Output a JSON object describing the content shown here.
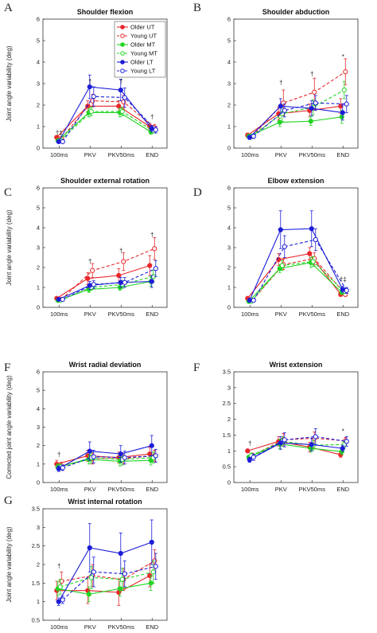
{
  "series_styles": [
    {
      "name": "Older UT",
      "color": "#e8262a",
      "dash": false,
      "filled": true
    },
    {
      "name": "Young UT",
      "color": "#e8262a",
      "dash": true,
      "filled": false
    },
    {
      "name": "Older MT",
      "color": "#22d422",
      "dash": false,
      "filled": true
    },
    {
      "name": "Young MT",
      "color": "#22d422",
      "dash": true,
      "filled": false
    },
    {
      "name": "Older LT",
      "color": "#1c1cd8",
      "dash": false,
      "filled": true
    },
    {
      "name": "Young LT",
      "color": "#1c1cd8",
      "dash": true,
      "filled": false
    }
  ],
  "chart_data": [
    {
      "type": "line",
      "letter": "A",
      "title": "Shoulder flexion",
      "ylabel": "Joint angle variability (deg)",
      "categories": [
        "100ms",
        "PKV",
        "PKV50ms",
        "END"
      ],
      "ylim": [
        0,
        6
      ],
      "yticks": [
        "0",
        "1",
        "2",
        "3",
        "4",
        "5",
        "6"
      ],
      "legend": "top-right",
      "annotations": [
        {
          "text": "†‡",
          "x": 0,
          "y": 0.62
        },
        {
          "text": "†",
          "x": 1,
          "y": 3.0
        },
        {
          "text": "†",
          "x": 2,
          "y": 3.0
        },
        {
          "text": "†",
          "x": 3,
          "y": 1.35
        }
      ],
      "series": [
        {
          "values": [
            0.5,
            1.95,
            1.95,
            1.0
          ],
          "err": [
            0.05,
            0.25,
            0.25,
            0.15
          ]
        },
        {
          "values": [
            0.45,
            2.2,
            2.15,
            0.95
          ],
          "err": [
            0.05,
            0.3,
            0.3,
            0.15
          ]
        },
        {
          "values": [
            0.35,
            1.65,
            1.65,
            0.75
          ],
          "err": [
            0.05,
            0.2,
            0.2,
            0.1
          ]
        },
        {
          "values": [
            0.35,
            1.7,
            1.7,
            0.8
          ],
          "err": [
            0.05,
            0.2,
            0.2,
            0.1
          ]
        },
        {
          "values": [
            0.3,
            2.85,
            2.7,
            0.9
          ],
          "err": [
            0.05,
            0.55,
            0.5,
            0.15
          ]
        },
        {
          "values": [
            0.3,
            2.4,
            2.35,
            0.85
          ],
          "err": [
            0.05,
            0.45,
            0.45,
            0.15
          ]
        }
      ]
    },
    {
      "type": "line",
      "letter": "B",
      "title": "Shoulder abduction",
      "ylabel": "",
      "categories": [
        "100ms",
        "PKV",
        "PKV50ms",
        "END"
      ],
      "ylim": [
        0,
        6
      ],
      "yticks": [
        "0",
        "1",
        "2",
        "3",
        "4",
        "5",
        "6"
      ],
      "annotations": [
        {
          "text": "†",
          "x": 1,
          "y": 2.95
        },
        {
          "text": "†",
          "x": 2,
          "y": 3.35
        },
        {
          "text": "*",
          "x": 3,
          "y": 4.15
        }
      ],
      "series": [
        {
          "values": [
            0.6,
            1.6,
            1.75,
            1.95
          ],
          "err": [
            0.1,
            0.3,
            0.3,
            0.35
          ]
        },
        {
          "values": [
            0.55,
            2.1,
            2.6,
            3.55
          ],
          "err": [
            0.1,
            0.6,
            0.65,
            0.6
          ]
        },
        {
          "values": [
            0.55,
            1.2,
            1.25,
            1.45
          ],
          "err": [
            0.1,
            0.2,
            0.2,
            0.3
          ]
        },
        {
          "values": [
            0.55,
            1.6,
            1.9,
            2.7
          ],
          "err": [
            0.1,
            0.35,
            0.35,
            0.4
          ]
        },
        {
          "values": [
            0.5,
            1.95,
            1.85,
            1.65
          ],
          "err": [
            0.1,
            0.35,
            0.35,
            0.35
          ]
        },
        {
          "values": [
            0.55,
            1.75,
            2.1,
            2.05
          ],
          "err": [
            0.1,
            0.3,
            0.35,
            0.4
          ]
        }
      ]
    },
    {
      "type": "line",
      "letter": "C",
      "title": "Shoulder external rotation",
      "ylabel": "Joint angle variability (deg)",
      "categories": [
        "100ms",
        "PKV",
        "PKV50ms",
        "END"
      ],
      "ylim": [
        0,
        6
      ],
      "yticks": [
        "0",
        "1",
        "2",
        "3",
        "4",
        "5",
        "6"
      ],
      "annotations": [
        {
          "text": "†",
          "x": 1,
          "y": 2.2
        },
        {
          "text": "†",
          "x": 2,
          "y": 2.75
        },
        {
          "text": "†",
          "x": 3,
          "y": 3.55
        }
      ],
      "series": [
        {
          "values": [
            0.45,
            1.45,
            1.6,
            2.1
          ],
          "err": [
            0.05,
            0.3,
            0.35,
            0.5
          ]
        },
        {
          "values": [
            0.4,
            1.85,
            2.3,
            2.95
          ],
          "err": [
            0.05,
            0.35,
            0.45,
            0.55
          ]
        },
        {
          "values": [
            0.35,
            0.9,
            1.0,
            1.3
          ],
          "err": [
            0.05,
            0.15,
            0.15,
            0.25
          ]
        },
        {
          "values": [
            0.35,
            1.0,
            1.15,
            1.55
          ],
          "err": [
            0.05,
            0.15,
            0.2,
            0.3
          ]
        },
        {
          "values": [
            0.4,
            1.1,
            1.25,
            1.3
          ],
          "err": [
            0.05,
            0.2,
            0.25,
            0.3
          ]
        },
        {
          "values": [
            0.4,
            1.15,
            1.25,
            1.95
          ],
          "err": [
            0.05,
            0.2,
            0.25,
            0.4
          ]
        }
      ]
    },
    {
      "type": "line",
      "letter": "D",
      "title": "Elbow extension",
      "ylabel": "",
      "categories": [
        "100ms",
        "PKV",
        "PKV50ms",
        "END"
      ],
      "ylim": [
        0,
        6
      ],
      "yticks": [
        "0",
        "1",
        "2",
        "3",
        "4",
        "5",
        "6"
      ],
      "annotations": [
        {
          "text": "†‡",
          "x": 3,
          "y": 1.3
        }
      ],
      "series": [
        {
          "values": [
            0.45,
            2.4,
            2.7,
            0.65
          ],
          "err": [
            0.05,
            0.3,
            0.3,
            0.1
          ]
        },
        {
          "values": [
            0.35,
            2.15,
            2.45,
            0.65
          ],
          "err": [
            0.05,
            0.25,
            0.3,
            0.1
          ]
        },
        {
          "values": [
            0.3,
            1.95,
            2.25,
            0.75
          ],
          "err": [
            0.05,
            0.2,
            0.25,
            0.1
          ]
        },
        {
          "values": [
            0.3,
            2.1,
            2.3,
            0.8
          ],
          "err": [
            0.05,
            0.25,
            0.25,
            0.1
          ]
        },
        {
          "values": [
            0.35,
            3.9,
            3.95,
            0.9
          ],
          "err": [
            0.05,
            0.95,
            0.9,
            0.15
          ]
        },
        {
          "values": [
            0.35,
            3.05,
            3.4,
            0.85
          ],
          "err": [
            0.05,
            0.55,
            0.55,
            0.15
          ]
        }
      ]
    },
    {
      "type": "line",
      "letter": "F",
      "title": "Wrist radial deviation",
      "ylabel": "Corrected joint angle variability (deg)",
      "categories": [
        "100ms",
        "PKV",
        "PKV50ms",
        "END"
      ],
      "ylim": [
        0,
        6
      ],
      "yticks": [
        "0",
        "1",
        "2",
        "3",
        "4",
        "5",
        "6"
      ],
      "annotations": [
        {
          "text": "†",
          "x": 0,
          "y": 1.4
        }
      ],
      "series": [
        {
          "values": [
            1.0,
            1.45,
            1.35,
            1.55
          ],
          "err": [
            0.2,
            0.3,
            0.3,
            0.35
          ]
        },
        {
          "values": [
            0.9,
            1.3,
            1.3,
            1.45
          ],
          "err": [
            0.2,
            0.3,
            0.3,
            0.3
          ]
        },
        {
          "values": [
            0.85,
            1.25,
            1.15,
            1.2
          ],
          "err": [
            0.15,
            0.25,
            0.25,
            0.25
          ]
        },
        {
          "values": [
            0.85,
            1.35,
            1.25,
            1.35
          ],
          "err": [
            0.15,
            0.3,
            0.3,
            0.3
          ]
        },
        {
          "values": [
            0.75,
            1.7,
            1.55,
            2.0
          ],
          "err": [
            0.15,
            0.5,
            0.45,
            0.55
          ]
        },
        {
          "values": [
            0.8,
            1.4,
            1.35,
            1.45
          ],
          "err": [
            0.15,
            0.35,
            0.35,
            0.35
          ]
        }
      ]
    },
    {
      "type": "line",
      "letter": "F",
      "title": "Wrist extension",
      "ylabel": "",
      "categories": [
        "100ms",
        "PKV",
        "PKV50ms",
        "END"
      ],
      "ylim": [
        0,
        3.5
      ],
      "yticks": [
        "0",
        "0.5",
        "1",
        "1.5",
        "2",
        "2.5",
        "3",
        "3.5"
      ],
      "annotations": [
        {
          "text": "†",
          "x": 0,
          "y": 1.17
        },
        {
          "text": "*",
          "x": 3,
          "y": 1.55
        }
      ],
      "series": [
        {
          "values": [
            1.0,
            1.3,
            1.12,
            0.88
          ],
          "err": [
            0.06,
            0.15,
            0.15,
            0.08
          ]
        },
        {
          "values": [
            0.85,
            1.35,
            1.4,
            1.32
          ],
          "err": [
            0.08,
            0.2,
            0.2,
            0.1
          ]
        },
        {
          "values": [
            0.8,
            1.22,
            1.08,
            0.98
          ],
          "err": [
            0.06,
            0.15,
            0.12,
            0.1
          ]
        },
        {
          "values": [
            0.85,
            1.3,
            1.18,
            1.2
          ],
          "err": [
            0.08,
            0.15,
            0.15,
            0.1
          ]
        },
        {
          "values": [
            0.72,
            1.25,
            1.2,
            1.08
          ],
          "err": [
            0.08,
            0.2,
            0.2,
            0.1
          ]
        },
        {
          "values": [
            0.8,
            1.35,
            1.45,
            1.3
          ],
          "err": [
            0.1,
            0.22,
            0.25,
            0.15
          ]
        }
      ]
    },
    {
      "type": "line",
      "letter": "G",
      "title": "Wrist internal rotation",
      "ylabel": "Joint angle variability (deg)",
      "categories": [
        "100ms",
        "PKV",
        "PKV50ms",
        "END"
      ],
      "ylim": [
        0.5,
        3.5
      ],
      "yticks": [
        "0.5",
        "1",
        "1.5",
        "2",
        "2.5",
        "3",
        "3.5"
      ],
      "annotations": [
        {
          "text": "†",
          "x": 0,
          "y": 1.9
        }
      ],
      "series": [
        {
          "values": [
            1.3,
            1.3,
            1.25,
            1.7
          ],
          "err": [
            0.25,
            0.35,
            0.35,
            0.3
          ]
        },
        {
          "values": [
            1.55,
            1.7,
            1.6,
            2.1
          ],
          "err": [
            0.25,
            0.3,
            0.3,
            0.3
          ]
        },
        {
          "values": [
            1.35,
            1.2,
            1.35,
            1.5
          ],
          "err": [
            0.2,
            0.2,
            0.2,
            0.2
          ]
        },
        {
          "values": [
            1.4,
            1.65,
            1.6,
            1.8
          ],
          "err": [
            0.2,
            0.3,
            0.3,
            0.3
          ]
        },
        {
          "values": [
            1.0,
            2.45,
            2.3,
            2.6
          ],
          "err": [
            0.1,
            0.65,
            0.55,
            0.6
          ]
        },
        {
          "values": [
            1.05,
            1.8,
            1.75,
            1.95
          ],
          "err": [
            0.1,
            0.4,
            0.35,
            0.35
          ]
        }
      ]
    }
  ]
}
